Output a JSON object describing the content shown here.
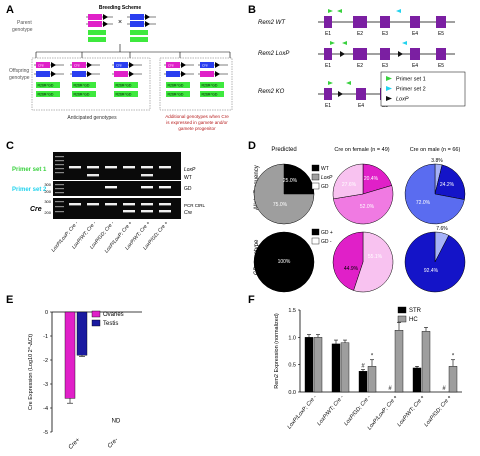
{
  "panels": {
    "A": {
      "letter": "A",
      "title": "Breeding Scheme",
      "parent_label": [
        "Parent",
        "genotype"
      ],
      "offspring_label": [
        "Offspring",
        "genotype"
      ],
      "cross_symbol": "×",
      "tags": {
        "cre": "Cre",
        "rosa": "R26R^GD",
        "rosa_short": "R26R"
      },
      "anticipated_caption": "Anticipated genotypes",
      "additional_caption": [
        "Additional genotypes when Cre",
        "is expressed in gamete and/or",
        "gamete progenitor"
      ]
    },
    "B": {
      "letter": "B",
      "rows": [
        "Rem2 WT",
        "Rem2 LoxP",
        "Rem2 KO"
      ],
      "exons_full": [
        "E1",
        "E2",
        "E3",
        "E4",
        "E5"
      ],
      "exons_ko": [
        "E1",
        "E4",
        "E5"
      ],
      "legend": [
        "Primer set 1",
        "Primer set 2",
        "LoxP"
      ],
      "colors": {
        "exon": "#7b1fa2",
        "primer1": "#39d13e",
        "primer2": "#22d3ee",
        "loxp": "#111111"
      }
    },
    "C": {
      "letter": "C",
      "gel_labels": [
        "Primer set 1",
        "Primer set 2",
        "Cre"
      ],
      "marker": [
        "300",
        "200",
        "300",
        "200",
        "300",
        "200"
      ],
      "band_labels": [
        "LoxP",
        "WT",
        "GD",
        "PCR CtRL",
        "Cre"
      ],
      "lanes": [
        "LoxP/LoxP; Cre -",
        "LoxP/WT; Cre -",
        "LoxP/GD; Cre -",
        "LoxP/LoxP; Cre +",
        "LoxP/WT; Cre +",
        "LoxP/GD; Cre +"
      ]
    },
    "D": {
      "letter": "D",
      "col_headers": [
        "Predicted",
        "Cre on female (n = 49)",
        "Cre on male (n = 66)"
      ],
      "row_labels": [
        "Allele Frequency",
        "GD genotype"
      ],
      "legend_top": [
        "WT",
        "LoxP",
        "GD"
      ],
      "legend_bottom": [
        "GD +",
        "GD -"
      ],
      "chart_data": [
        {
          "type": "pie",
          "title": "Predicted",
          "slices": [
            {
              "label": "WT",
              "value": 25.0
            },
            {
              "label": "LoxP",
              "value": 75.0
            },
            {
              "label": "GD",
              "value": 0
            }
          ],
          "labels_text": [
            "25.0%",
            "75.0%"
          ]
        },
        {
          "type": "pie",
          "title": "Cre on female (n = 49)",
          "slices": [
            {
              "label": "WT",
              "value": 0
            },
            {
              "label": "LoxP",
              "value": 20.4
            },
            {
              "label": "GD",
              "value": 52.0
            },
            {
              "label": "other",
              "value": 27.6
            }
          ],
          "labels_text": [
            "20.4%",
            "52.0%",
            "27.6%"
          ]
        },
        {
          "type": "pie",
          "title": "Cre on male (n = 66)",
          "slices": [
            {
              "label": "GD",
              "value": 3.8
            },
            {
              "label": "WT",
              "value": 24.2
            },
            {
              "label": "LoxP",
              "value": 72.0
            }
          ],
          "labels_text": [
            "3.8%",
            "24.2%",
            "72.0%"
          ]
        },
        {
          "type": "pie",
          "slices": [
            {
              "label": "GD +",
              "value": 100
            }
          ],
          "labels_text": [
            "100%"
          ]
        },
        {
          "type": "pie",
          "slices": [
            {
              "label": "GD +",
              "value": 44.9
            },
            {
              "label": "GD -",
              "value": 55.1
            }
          ],
          "labels_text": [
            "44.9%",
            "55.1%"
          ]
        },
        {
          "type": "pie",
          "slices": [
            {
              "label": "GD -",
              "value": 7.6
            },
            {
              "label": "GD +",
              "value": 92.4
            }
          ],
          "labels_text": [
            "7.6%",
            "92.4%"
          ]
        }
      ],
      "colors": {
        "pred_wt": "#000000",
        "pred_loxp": "#9e9e9e",
        "pred_gd": "#ffffff",
        "fem_dark": "#e020c8",
        "fem_mid": "#f07ae2",
        "fem_light": "#f8c2f0",
        "male_dark": "#1414c8",
        "male_mid": "#5a6cf0",
        "male_light": "#a6b2f8",
        "gd_plus_black": "#000000"
      }
    },
    "E": {
      "letter": "E",
      "chart_data": {
        "type": "bar",
        "categories": [
          "Cre+",
          "Cre-"
        ],
        "series": [
          {
            "name": "Ovaries",
            "values": [
              -3.6,
              null
            ]
          },
          {
            "name": "Testis",
            "values": [
              -1.8,
              null
            ]
          }
        ],
        "errors": [
          0.2,
          0.05
        ],
        "ylabel": "Cre Expression (Log10 2^-ΔCt)",
        "ylim": [
          -5,
          0
        ],
        "yticks": [
          "0",
          "-1",
          "-2",
          "-3",
          "-4",
          "-5"
        ],
        "annotation": "ND"
      },
      "colors": {
        "ovaries": "#e020c8",
        "testis": "#1a1aa0"
      }
    },
    "F": {
      "letter": "F",
      "chart_data": {
        "type": "bar",
        "categories": [
          "LoxP/LoxP; Cre -",
          "LoxP/WT; Cre -",
          "LoxP/GD; Cre -",
          "LoxP/LoxP; Cre +",
          "LoxP/WT; Cre +",
          "LoxP/GD; Cre +"
        ],
        "series": [
          {
            "name": "STR",
            "values": [
              1.0,
              0.88,
              0.38,
              0.0,
              0.44,
              0.0
            ]
          },
          {
            "name": "HC",
            "values": [
              1.0,
              0.9,
              0.47,
              1.13,
              1.11,
              0.47
            ]
          }
        ],
        "errors": {
          "STR": [
            0.05,
            0.07,
            0.03,
            0.0,
            0.03,
            0.0
          ],
          "HC": [
            0.05,
            0.05,
            0.12,
            0.14,
            0.07,
            0.12
          ]
        },
        "ylabel": "Rem2 Expression (normalized)",
        "ylim": [
          0,
          1.5
        ],
        "yticks": [
          "0.0",
          "0.5",
          "1.0",
          "1.5"
        ],
        "markers": [
          "#",
          "*",
          "#",
          "#",
          "*"
        ]
      },
      "colors": {
        "str": "#000000",
        "hc": "#9e9e9e"
      }
    }
  }
}
